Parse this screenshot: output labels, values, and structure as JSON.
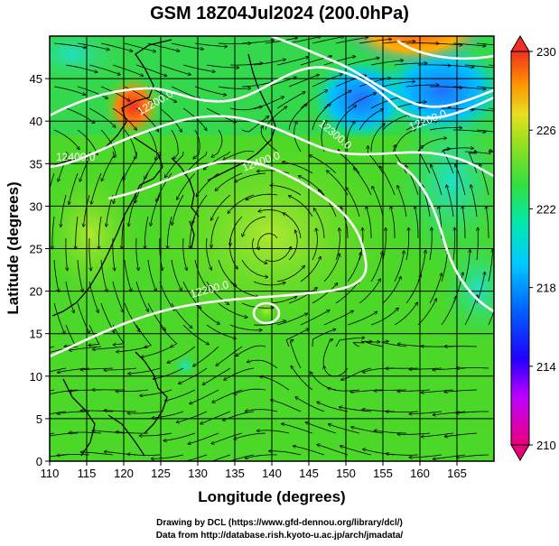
{
  "title": "GSM 18Z04Jul2024 (200.0hPa)",
  "xlabel": "Longitude (degrees)",
  "ylabel": "Latitude  (degrees)",
  "credit_line1": "Drawing by DCL (https://www.gfd-dennou.org/library/dcl/)",
  "credit_line2": "Data from http://database.rish.kyoto-u.ac.jp/arch/jmadata/",
  "x_ticks": [
    "110",
    "115",
    "120",
    "125",
    "130",
    "135",
    "140",
    "145",
    "150",
    "155",
    "160",
    "165"
  ],
  "y_ticks": [
    "0",
    "5",
    "10",
    "15",
    "20",
    "25",
    "30",
    "35",
    "40",
    "45"
  ],
  "colorbar_ticks": [
    "230",
    "226",
    "222",
    "218",
    "214",
    "210"
  ],
  "contour_labels": [
    "12200.0",
    "12400.0",
    "12400.0",
    "12300.0",
    "12200.0",
    "12200.0"
  ],
  "colorbar_colors": [
    "#e8007a",
    "#c000ff",
    "#6000ff",
    "#0030ff",
    "#00a8ff",
    "#00e8d0",
    "#20e060",
    "#60e020",
    "#c0e820",
    "#ffd000",
    "#ff7000",
    "#f03020"
  ],
  "field_colors": {
    "warm": "#f04020",
    "yellowgreen": "#a8e030",
    "green": "#40d820",
    "cyan": "#20e0c0",
    "blue": "#2080ff"
  }
}
